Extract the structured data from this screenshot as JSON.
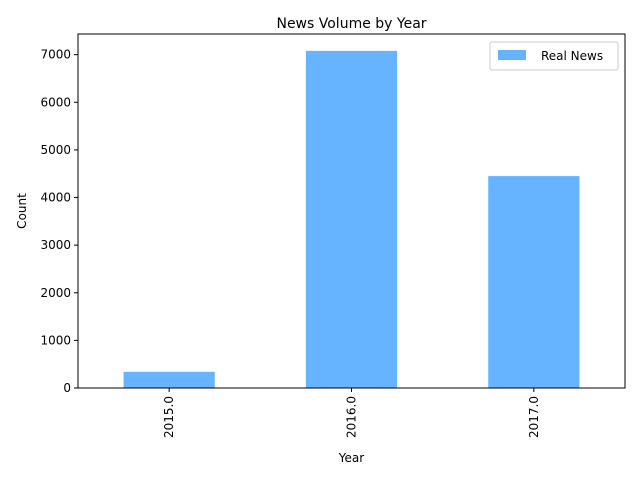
{
  "chart_data": {
    "type": "bar",
    "title": "News Volume by Year",
    "xlabel": "Year",
    "ylabel": "Count",
    "categories": [
      "2015.0",
      "2016.0",
      "2017.0"
    ],
    "series": [
      {
        "name": "Real News",
        "values": [
          340,
          7080,
          4450
        ],
        "color": "#66b3ff"
      }
    ],
    "ylim": [
      0,
      7434
    ],
    "yticks": [
      "0",
      "1000",
      "2000",
      "3000",
      "4000",
      "5000",
      "6000",
      "7000"
    ],
    "grid": false,
    "legend": "top-right",
    "xtick_rotation": 90
  }
}
